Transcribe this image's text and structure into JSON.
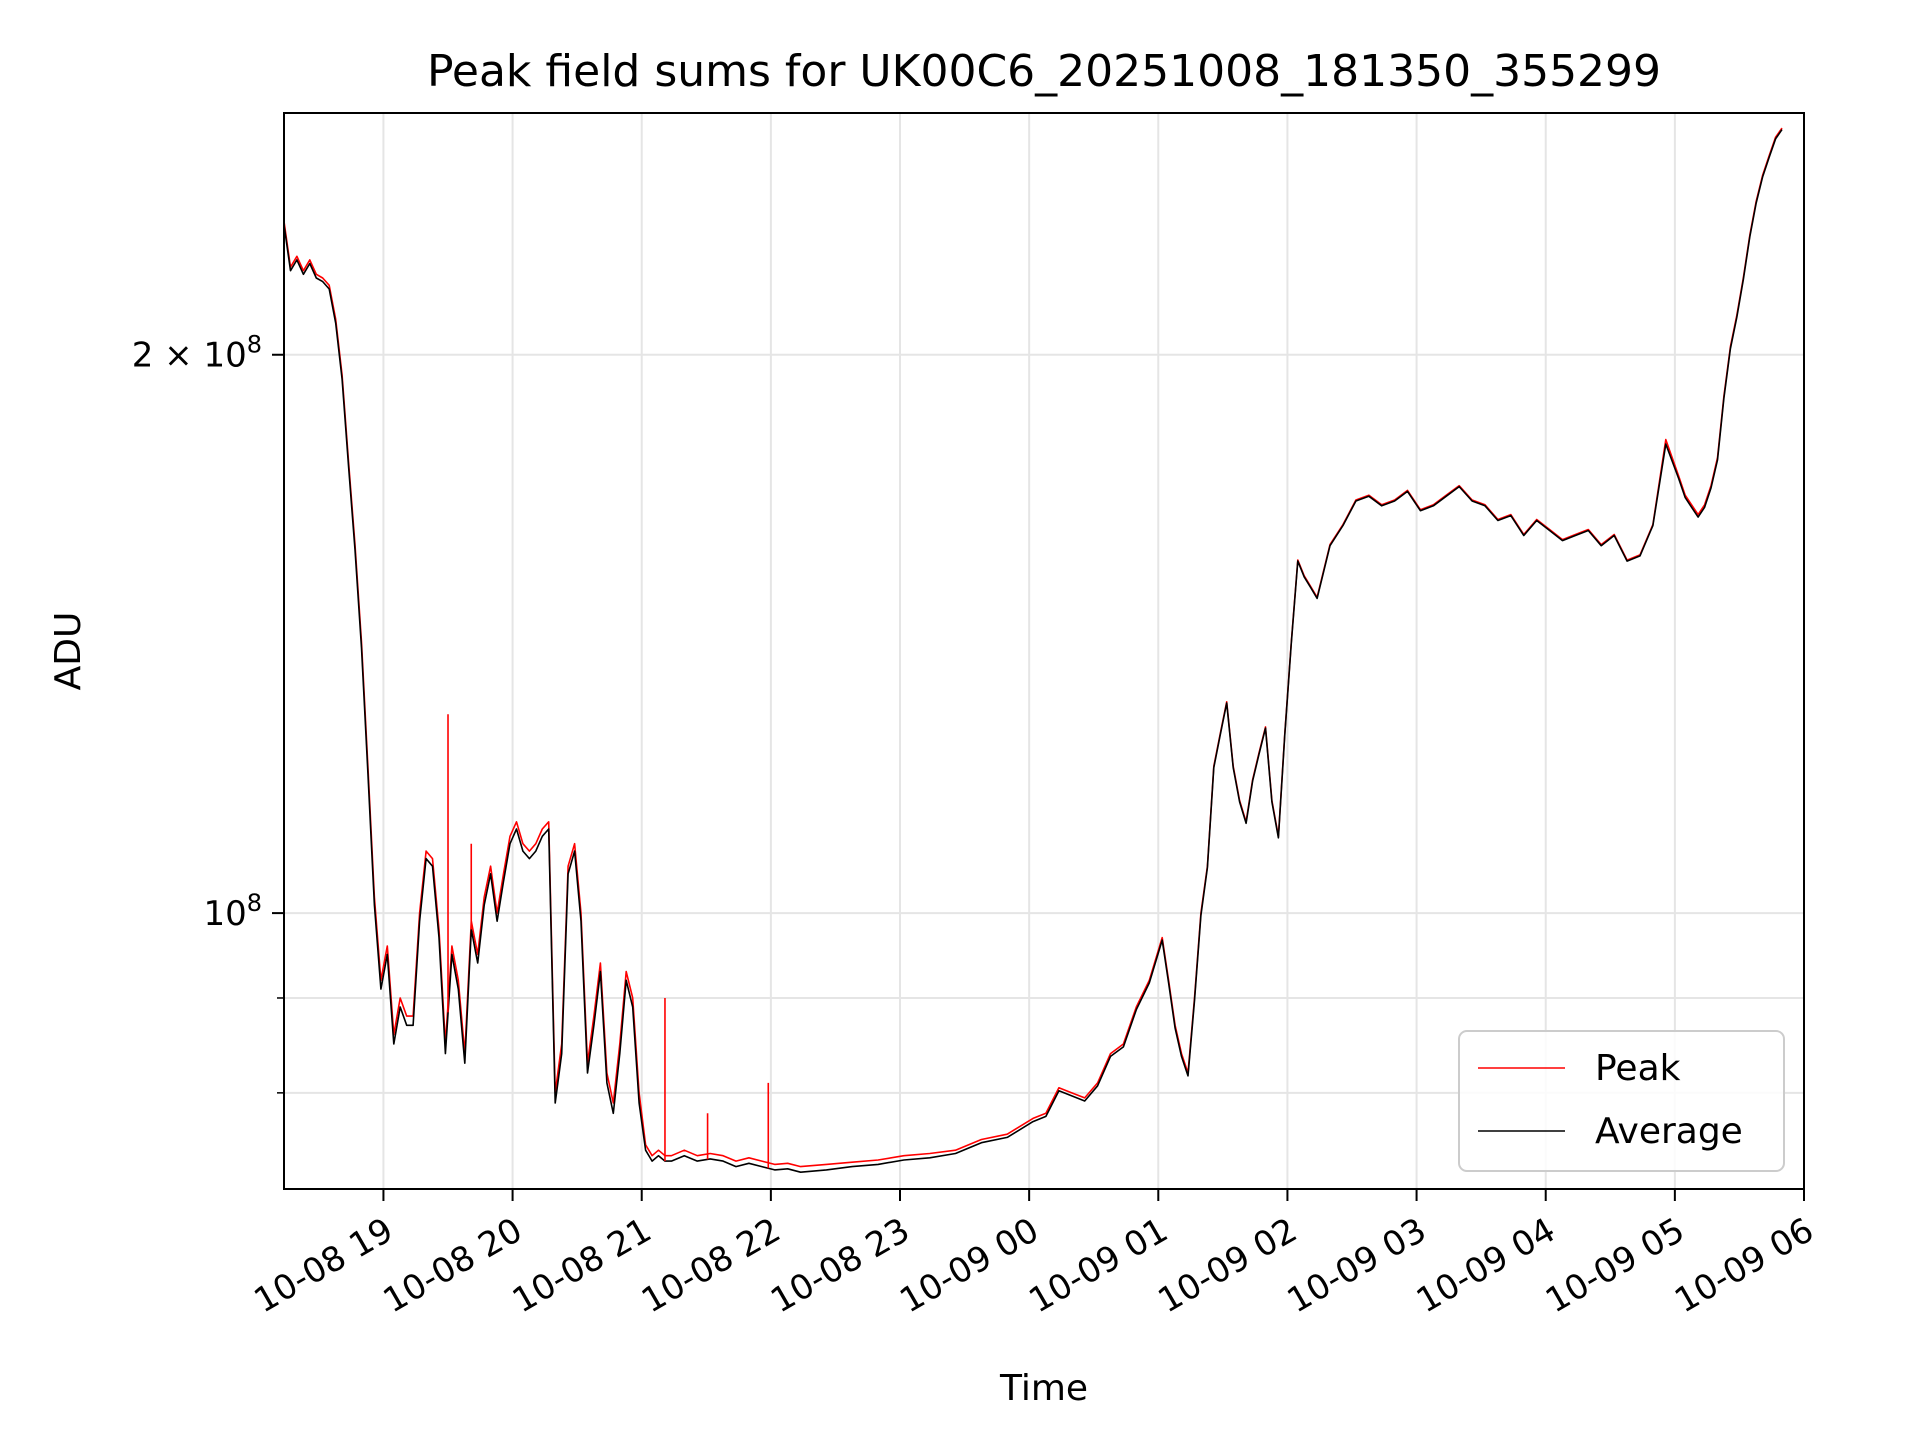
{
  "chart_data": {
    "type": "line",
    "title": "Peak field sums for UK00C6_20251008_181350_355299",
    "xlabel": "Time",
    "ylabel": "ADU",
    "yscale": "log",
    "ylim": [
      71000000,
      270000000
    ],
    "xlim_hours": [
      0,
      11.77
    ],
    "grid": true,
    "legend_position": "lower-right",
    "x_ticks": [
      {
        "hour": 0.77,
        "label": "10-08 19"
      },
      {
        "hour": 1.77,
        "label": "10-08 20"
      },
      {
        "hour": 2.77,
        "label": "10-08 21"
      },
      {
        "hour": 3.77,
        "label": "10-08 22"
      },
      {
        "hour": 4.77,
        "label": "10-08 23"
      },
      {
        "hour": 5.77,
        "label": "10-09 00"
      },
      {
        "hour": 6.77,
        "label": "10-09 01"
      },
      {
        "hour": 7.77,
        "label": "10-09 02"
      },
      {
        "hour": 8.77,
        "label": "10-09 03"
      },
      {
        "hour": 9.77,
        "label": "10-09 04"
      },
      {
        "hour": 10.77,
        "label": "10-09 05"
      },
      {
        "hour": 11.77,
        "label": "10-09 06"
      }
    ],
    "y_ticks": [
      {
        "value": 100000000,
        "base": "10",
        "exp": "8",
        "coef": ""
      },
      {
        "value": 200000000,
        "base": "10",
        "exp": "8",
        "coef": "2 × "
      }
    ],
    "y_minor_ticks": [
      80000000,
      90000000
    ],
    "x_hours": [
      0.0,
      0.05,
      0.1,
      0.15,
      0.2,
      0.25,
      0.3,
      0.35,
      0.4,
      0.45,
      0.5,
      0.55,
      0.6,
      0.65,
      0.7,
      0.75,
      0.8,
      0.85,
      0.9,
      0.95,
      1.0,
      1.05,
      1.1,
      1.15,
      1.2,
      1.25,
      1.3,
      1.35,
      1.4,
      1.45,
      1.5,
      1.55,
      1.6,
      1.65,
      1.7,
      1.75,
      1.8,
      1.85,
      1.9,
      1.95,
      2.0,
      2.05,
      2.1,
      2.15,
      2.2,
      2.25,
      2.3,
      2.35,
      2.4,
      2.45,
      2.5,
      2.55,
      2.6,
      2.65,
      2.7,
      2.75,
      2.8,
      2.85,
      2.9,
      2.95,
      3.0,
      3.1,
      3.2,
      3.3,
      3.4,
      3.5,
      3.6,
      3.7,
      3.8,
      3.9,
      4.0,
      4.2,
      4.4,
      4.6,
      4.8,
      5.0,
      5.2,
      5.4,
      5.6,
      5.8,
      5.9,
      6.0,
      6.1,
      6.2,
      6.3,
      6.4,
      6.5,
      6.6,
      6.7,
      6.8,
      6.85,
      6.9,
      6.95,
      7.0,
      7.05,
      7.1,
      7.15,
      7.2,
      7.25,
      7.3,
      7.35,
      7.4,
      7.45,
      7.5,
      7.55,
      7.6,
      7.65,
      7.7,
      7.75,
      7.8,
      7.85,
      7.9,
      7.95,
      8.0,
      8.1,
      8.2,
      8.3,
      8.4,
      8.5,
      8.6,
      8.7,
      8.8,
      8.9,
      9.0,
      9.1,
      9.2,
      9.3,
      9.4,
      9.5,
      9.6,
      9.7,
      9.8,
      9.9,
      10.0,
      10.1,
      10.2,
      10.3,
      10.4,
      10.5,
      10.6,
      10.7,
      10.8,
      10.85,
      10.9,
      10.95,
      11.0,
      11.05,
      11.1,
      11.15,
      11.2,
      11.25,
      11.3,
      11.35,
      11.4,
      11.45,
      11.5,
      11.55,
      11.6,
      11.65,
      11.7,
      11.77
    ],
    "series": [
      {
        "name": "Peak",
        "color": "#ff0000",
        "values": [
          236000000.0,
          223000000.0,
          226000000.0,
          222000000.0,
          225000000.0,
          221000000.0,
          220000000.0,
          218000000.0,
          209000000.0,
          195000000.0,
          175000000.0,
          158000000.0,
          140000000.0,
          120000000.0,
          102000000.0,
          92000000.0,
          96000000.0,
          86000000.0,
          90000000.0,
          88000000.0,
          88000000.0,
          100000000.0,
          108000000.0,
          107000000.0,
          98000000.0,
          85000000.0,
          96000000.0,
          92000000.0,
          84000000.0,
          99000000.0,
          95000000.0,
          102000000.0,
          106000000.0,
          100000000.0,
          105000000.0,
          110000000.0,
          112000000.0,
          109000000.0,
          108000000.0,
          109000000.0,
          111000000.0,
          112000000.0,
          80000000.0,
          85000000.0,
          106000000.0,
          109000000.0,
          100000000.0,
          83000000.0,
          88000000.0,
          94000000.0,
          82000000.0,
          79000000.0,
          85000000.0,
          93000000.0,
          90000000.0,
          80000000.0,
          75000000.0,
          74000000.0,
          74500000.0,
          74000000.0,
          74000000.0,
          74500000.0,
          74000000.0,
          74200000.0,
          74000000.0,
          73500000.0,
          73800000.0,
          73500000.0,
          73200000.0,
          73300000.0,
          73000000.0,
          73200000.0,
          73400000.0,
          73600000.0,
          74000000.0,
          74200000.0,
          74500000.0,
          75500000.0,
          76000000.0,
          77500000.0,
          78000000.0,
          80500000.0,
          80000000.0,
          79500000.0,
          81000000.0,
          84000000.0,
          85000000.0,
          89000000.0,
          92000000.0,
          97000000.0,
          92000000.0,
          87000000.0,
          84000000.0,
          82000000.0,
          90000000.0,
          100000000.0,
          106000000.0,
          120000000.0,
          125000000.0,
          130000000.0,
          120000000.0,
          115000000.0,
          112000000.0,
          118000000.0,
          122000000.0,
          126000000.0,
          115000000.0,
          110000000.0,
          125000000.0,
          140000000.0,
          155000000.0,
          152000000.0,
          150000000.0,
          148000000.0,
          158000000.0,
          162000000.0,
          167000000.0,
          168000000.0,
          166000000.0,
          167000000.0,
          169000000.0,
          165000000.0,
          166000000.0,
          168000000.0,
          170000000.0,
          167000000.0,
          166000000.0,
          163000000.0,
          164000000.0,
          160000000.0,
          163000000.0,
          161000000.0,
          159000000.0,
          160000000.0,
          161000000.0,
          158000000.0,
          160000000.0,
          155000000.0,
          156000000.0,
          162000000.0,
          180000000.0,
          172000000.0,
          168000000.0,
          166000000.0,
          164000000.0,
          166000000.0,
          170000000.0,
          176000000.0,
          190000000.0,
          202000000.0,
          210000000.0,
          220000000.0,
          232000000.0,
          242000000.0,
          250000000.0,
          256000000.0,
          262000000.0,
          265000000.0
        ]
      },
      {
        "name": "Average",
        "color": "#000000",
        "values": [
          235000000.0,
          222000000.0,
          225000000.0,
          221000000.0,
          224000000.0,
          220000000.0,
          219000000.0,
          217000000.0,
          208000000.0,
          194000000.0,
          174000000.0,
          157000000.0,
          139000000.0,
          119000000.0,
          101000000.0,
          91000000.0,
          95000000.0,
          85000000.0,
          89000000.0,
          87000000.0,
          87000000.0,
          99000000.0,
          107000000.0,
          106000000.0,
          97000000.0,
          84000000.0,
          95000000.0,
          91000000.0,
          83000000.0,
          98000000.0,
          94000000.0,
          101000000.0,
          105000000.0,
          99000000.0,
          104000000.0,
          109000000.0,
          111000000.0,
          108000000.0,
          107000000.0,
          108000000.0,
          110000000.0,
          111000000.0,
          79000000.0,
          84000000.0,
          105000000.0,
          108000000.0,
          99000000.0,
          82000000.0,
          87000000.0,
          93000000.0,
          81000000.0,
          78000000.0,
          84000000.0,
          92000000.0,
          89000000.0,
          79000000.0,
          74500000.0,
          73500000.0,
          74000000.0,
          73500000.0,
          73500000.0,
          74000000.0,
          73500000.0,
          73700000.0,
          73500000.0,
          73000000.0,
          73300000.0,
          73000000.0,
          72700000.0,
          72800000.0,
          72500000.0,
          72700000.0,
          73000000.0,
          73200000.0,
          73600000.0,
          73800000.0,
          74200000.0,
          75200000.0,
          75700000.0,
          77200000.0,
          77700000.0,
          80200000.0,
          79700000.0,
          79200000.0,
          80700000.0,
          83700000.0,
          84700000.0,
          88700000.0,
          91700000.0,
          96700000.0,
          91700000.0,
          86700000.0,
          83700000.0,
          81700000.0,
          89700000.0,
          99700000.0,
          105800000.0,
          119800000.0,
          124800000.0,
          129800000.0,
          119800000.0,
          114800000.0,
          111800000.0,
          117800000.0,
          121800000.0,
          125800000.0,
          114800000.0,
          109800000.0,
          124800000.0,
          139800000.0,
          154800000.0,
          151800000.0,
          149800000.0,
          147800000.0,
          157800000.0,
          161800000.0,
          166800000.0,
          167800000.0,
          165800000.0,
          166800000.0,
          168800000.0,
          164800000.0,
          165800000.0,
          167800000.0,
          169800000.0,
          166800000.0,
          165800000.0,
          162800000.0,
          163800000.0,
          159800000.0,
          162800000.0,
          160800000.0,
          158800000.0,
          159800000.0,
          160800000.0,
          157800000.0,
          159800000.0,
          154800000.0,
          155800000.0,
          161800000.0,
          179000000.0,
          171500000.0,
          167500000.0,
          165500000.0,
          163500000.0,
          165500000.0,
          169500000.0,
          175500000.0,
          189500000.0,
          201500000.0,
          209500000.0,
          219500000.0,
          231500000.0,
          241500000.0,
          249500000.0,
          255500000.0,
          261500000.0,
          264500000.0
        ]
      }
    ],
    "spikes": [
      {
        "hour": 1.27,
        "top": 128000000.0
      },
      {
        "hour": 1.45,
        "top": 109000000.0
      },
      {
        "hour": 2.95,
        "top": 90000000.0
      },
      {
        "hour": 3.28,
        "top": 78000000.0
      },
      {
        "hour": 3.75,
        "top": 81000000.0
      }
    ]
  }
}
